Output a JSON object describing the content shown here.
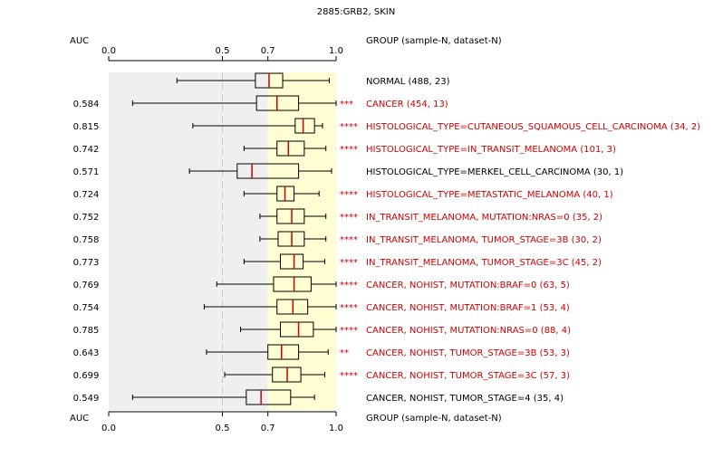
{
  "chart_data": {
    "type": "boxplot",
    "title": "2885:GRB2, SKIN",
    "auc_header": "AUC",
    "group_header": "GROUP (sample-N, dataset-N)",
    "axis": {
      "xlim": [
        0.0,
        1.0
      ],
      "ticks": [
        0.0,
        0.5,
        0.7,
        1.0
      ],
      "tick_labels": [
        "0.0",
        "0.5",
        "0.7",
        "1.0"
      ]
    },
    "shaded_regions": [
      {
        "from": 0.0,
        "to": 0.7,
        "color": "#efefef"
      },
      {
        "from": 0.7,
        "to": 1.0,
        "color": "#fefed2"
      }
    ],
    "reference_line": 0.5,
    "colors": {
      "significant": "#cc0000",
      "normal": "#000000",
      "median": "#cc0000",
      "box": "#000000",
      "dashed": "#c8c8c8"
    },
    "rows": [
      {
        "auc": "",
        "group": "NORMAL (488, 23)",
        "stars": "",
        "significant": false,
        "whisker_low": 0.3,
        "q1": 0.645,
        "median": 0.705,
        "q3": 0.765,
        "whisker_high": 0.97
      },
      {
        "auc": "0.584",
        "group": "CANCER (454, 13)",
        "stars": "***",
        "significant": true,
        "whisker_low": 0.105,
        "q1": 0.65,
        "median": 0.74,
        "q3": 0.835,
        "whisker_high": 1.0
      },
      {
        "auc": "0.815",
        "group": "HISTOLOGICAL_TYPE=CUTANEOUS_SQUAMOUS_CELL_CARCINOMA (34, 2)",
        "stars": "****",
        "significant": true,
        "whisker_low": 0.37,
        "q1": 0.82,
        "median": 0.855,
        "q3": 0.905,
        "whisker_high": 0.94
      },
      {
        "auc": "0.742",
        "group": "HISTOLOGICAL_TYPE=IN_TRANSIT_MELANOMA (101, 3)",
        "stars": "****",
        "significant": true,
        "whisker_low": 0.595,
        "q1": 0.74,
        "median": 0.79,
        "q3": 0.86,
        "whisker_high": 0.955
      },
      {
        "auc": "0.571",
        "group": "HISTOLOGICAL_TYPE=MERKEL_CELL_CARCINOMA (30, 1)",
        "stars": "",
        "significant": false,
        "whisker_low": 0.355,
        "q1": 0.565,
        "median": 0.63,
        "q3": 0.835,
        "whisker_high": 0.98
      },
      {
        "auc": "0.724",
        "group": "HISTOLOGICAL_TYPE=METASTATIC_MELANOMA (40, 1)",
        "stars": "****",
        "significant": true,
        "whisker_low": 0.595,
        "q1": 0.74,
        "median": 0.775,
        "q3": 0.815,
        "whisker_high": 0.925
      },
      {
        "auc": "0.752",
        "group": "IN_TRANSIT_MELANOMA, MUTATION:NRAS=0 (35, 2)",
        "stars": "****",
        "significant": true,
        "whisker_low": 0.665,
        "q1": 0.74,
        "median": 0.805,
        "q3": 0.86,
        "whisker_high": 0.955
      },
      {
        "auc": "0.758",
        "group": "IN_TRANSIT_MELANOMA, TUMOR_STAGE=3B (30, 2)",
        "stars": "****",
        "significant": true,
        "whisker_low": 0.665,
        "q1": 0.745,
        "median": 0.805,
        "q3": 0.86,
        "whisker_high": 0.955
      },
      {
        "auc": "0.773",
        "group": "IN_TRANSIT_MELANOMA, TUMOR_STAGE=3C (45, 2)",
        "stars": "****",
        "significant": true,
        "whisker_low": 0.595,
        "q1": 0.755,
        "median": 0.815,
        "q3": 0.855,
        "whisker_high": 0.95
      },
      {
        "auc": "0.769",
        "group": "CANCER, NOHIST, MUTATION:BRAF=0 (63, 5)",
        "stars": "****",
        "significant": true,
        "whisker_low": 0.475,
        "q1": 0.725,
        "median": 0.815,
        "q3": 0.89,
        "whisker_high": 1.0
      },
      {
        "auc": "0.754",
        "group": "CANCER, NOHIST, MUTATION:BRAF=1 (53, 4)",
        "stars": "****",
        "significant": true,
        "whisker_low": 0.42,
        "q1": 0.74,
        "median": 0.81,
        "q3": 0.875,
        "whisker_high": 1.0
      },
      {
        "auc": "0.785",
        "group": "CANCER, NOHIST, MUTATION:NRAS=0 (88, 4)",
        "stars": "****",
        "significant": true,
        "whisker_low": 0.58,
        "q1": 0.755,
        "median": 0.835,
        "q3": 0.9,
        "whisker_high": 1.0
      },
      {
        "auc": "0.643",
        "group": "CANCER, NOHIST, TUMOR_STAGE=3B (53, 3)",
        "stars": "**",
        "significant": true,
        "whisker_low": 0.43,
        "q1": 0.7,
        "median": 0.76,
        "q3": 0.835,
        "whisker_high": 0.965
      },
      {
        "auc": "0.699",
        "group": "CANCER, NOHIST, TUMOR_STAGE=3C (57, 3)",
        "stars": "****",
        "significant": true,
        "whisker_low": 0.51,
        "q1": 0.72,
        "median": 0.785,
        "q3": 0.845,
        "whisker_high": 0.95
      },
      {
        "auc": "0.549",
        "group": "CANCER, NOHIST, TUMOR_STAGE=4 (35, 4)",
        "stars": "",
        "significant": false,
        "whisker_low": 0.105,
        "q1": 0.605,
        "median": 0.67,
        "q3": 0.8,
        "whisker_high": 0.905
      }
    ]
  }
}
